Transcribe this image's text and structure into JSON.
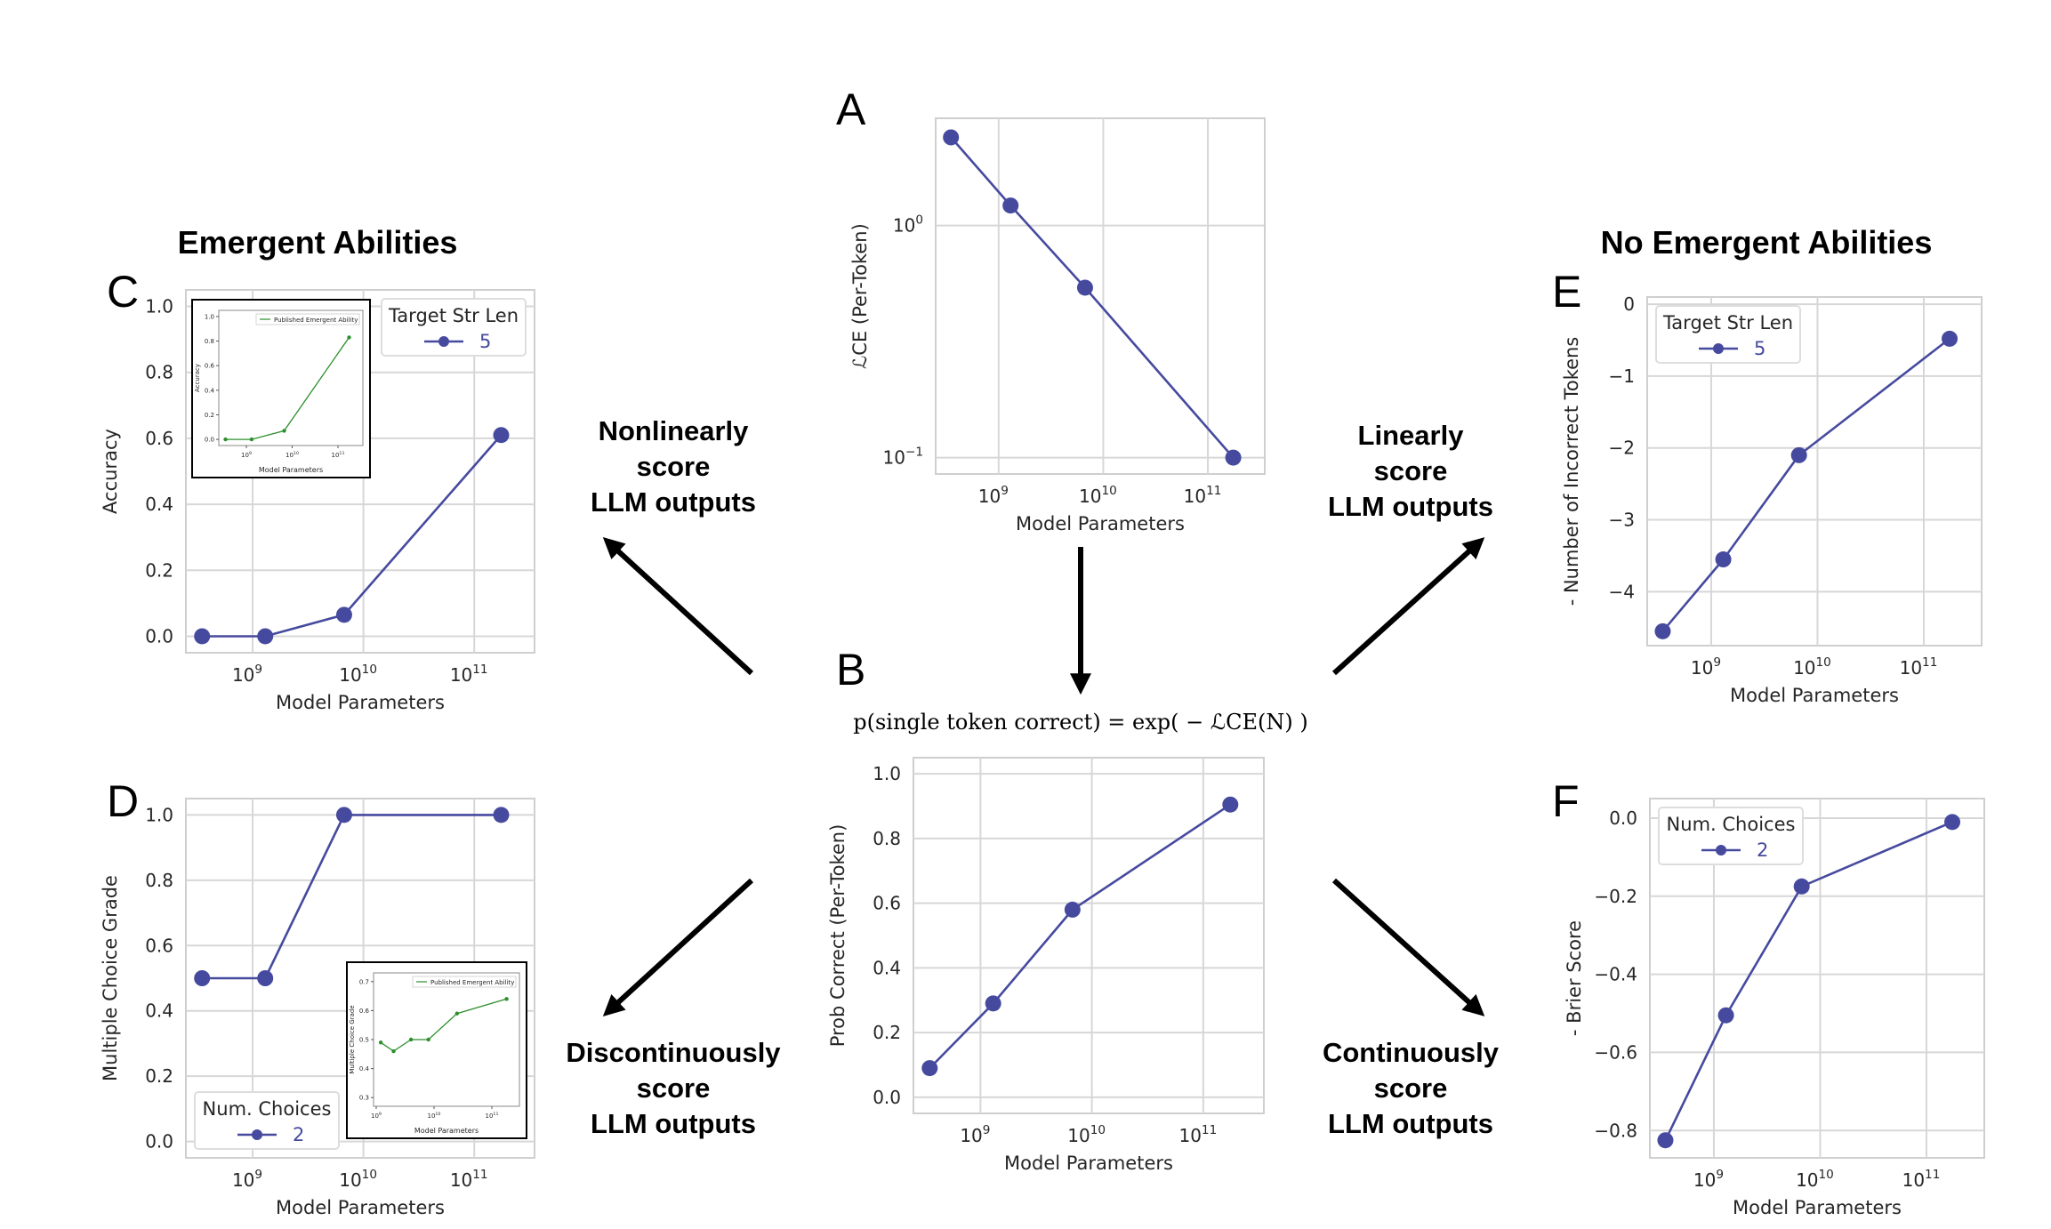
{
  "colors": {
    "series": "#464a9e",
    "inset": "#2c8f2c",
    "grid": "#d7d7d7",
    "frame": "#cfcfcf",
    "text": "#262626",
    "arrow": "#000000"
  },
  "headings": {
    "left": "Emergent Abilities",
    "right": "No Emergent Abilities"
  },
  "arrow_labels": {
    "upper_left": [
      "Nonlinearly",
      "score",
      "LLM outputs"
    ],
    "upper_right": [
      "Linearly",
      "score",
      "LLM outputs"
    ],
    "lower_left": [
      "Discontinuously",
      "score",
      "LLM outputs"
    ],
    "lower_right": [
      "Continuously",
      "score",
      "LLM outputs"
    ]
  },
  "formula": "p(single token correct) = exp( − ℒCE(N) )",
  "chart_data": [
    {
      "panel": "A",
      "type": "line",
      "xscale": "log",
      "yscale": "log",
      "x": [
        350000000.0,
        1300000000.0,
        6700000000.0,
        175000000000.0
      ],
      "y": [
        2.4,
        1.22,
        0.54,
        0.1
      ],
      "xlabel": "Model Parameters",
      "ylabel": "ℒCE (Per-Token)",
      "xlim": [
        250000000.0,
        350000000000.0
      ],
      "ylim": [
        0.085,
        2.9
      ],
      "xticks": [
        {
          "v": 1000000000.0,
          "b": "10",
          "e": "9"
        },
        {
          "v": 10000000000.0,
          "b": "10",
          "e": "10"
        },
        {
          "v": 100000000000.0,
          "b": "10",
          "e": "11"
        }
      ],
      "yticks": [
        {
          "v": 1,
          "b": "10",
          "e": "0"
        },
        {
          "v": 0.1,
          "b": "10",
          "e": "−1"
        }
      ],
      "grid": true,
      "legend": null
    },
    {
      "panel": "B",
      "type": "line",
      "xscale": "log",
      "x": [
        350000000.0,
        1300000000.0,
        6700000000.0,
        175000000000.0
      ],
      "y": [
        0.09,
        0.29,
        0.58,
        0.905
      ],
      "xlabel": "Model Parameters",
      "ylabel": "Prob Correct (Per-Token)",
      "xlim": [
        250000000.0,
        350000000000.0
      ],
      "ylim": [
        -0.05,
        1.05
      ],
      "xticks": [
        {
          "v": 1000000000.0,
          "b": "10",
          "e": "9"
        },
        {
          "v": 10000000000.0,
          "b": "10",
          "e": "10"
        },
        {
          "v": 100000000000.0,
          "b": "10",
          "e": "11"
        }
      ],
      "yticks": [
        {
          "v": 0,
          "t": "0.0"
        },
        {
          "v": 0.2,
          "t": "0.2"
        },
        {
          "v": 0.4,
          "t": "0.4"
        },
        {
          "v": 0.6,
          "t": "0.6"
        },
        {
          "v": 0.8,
          "t": "0.8"
        },
        {
          "v": 1,
          "t": "1.0"
        }
      ],
      "grid": true,
      "legend": null
    },
    {
      "panel": "C",
      "type": "line",
      "xscale": "log",
      "x": [
        350000000.0,
        1300000000.0,
        6700000000.0,
        175000000000.0
      ],
      "y": [
        0.0,
        0.0,
        0.065,
        0.61
      ],
      "xlabel": "Model Parameters",
      "ylabel": "Accuracy",
      "xlim": [
        250000000.0,
        350000000000.0
      ],
      "ylim": [
        -0.05,
        1.05
      ],
      "xticks": [
        {
          "v": 1000000000.0,
          "b": "10",
          "e": "9"
        },
        {
          "v": 10000000000.0,
          "b": "10",
          "e": "10"
        },
        {
          "v": 100000000000.0,
          "b": "10",
          "e": "11"
        }
      ],
      "yticks": [
        {
          "v": 0,
          "t": "0.0"
        },
        {
          "v": 0.2,
          "t": "0.2"
        },
        {
          "v": 0.4,
          "t": "0.4"
        },
        {
          "v": 0.6,
          "t": "0.6"
        },
        {
          "v": 0.8,
          "t": "0.8"
        },
        {
          "v": 1,
          "t": "1.0"
        }
      ],
      "grid": true,
      "legend": {
        "title": "Target Str Len",
        "entry": "5",
        "placement": "top-right"
      },
      "inset": {
        "placement": "top-left",
        "legend": "Published Emergent Ability",
        "xlabel": "Model Parameters",
        "ylabel": "Accuracy",
        "x": [
          350000000.0,
          1300000000.0,
          6700000000.0,
          175000000000.0
        ],
        "y": [
          0.0,
          0.0,
          0.07,
          0.83
        ],
        "xlim": [
          250000000.0,
          350000000000.0
        ],
        "ylim": [
          -0.05,
          1.05
        ],
        "xticks": [
          {
            "v": 1000000000.0,
            "b": "10",
            "e": "9"
          },
          {
            "v": 10000000000.0,
            "b": "10",
            "e": "10"
          },
          {
            "v": 100000000000.0,
            "b": "10",
            "e": "11"
          }
        ],
        "yticks": [
          {
            "v": 0,
            "t": "0.0"
          },
          {
            "v": 0.2,
            "t": "0.2"
          },
          {
            "v": 0.4,
            "t": "0.4"
          },
          {
            "v": 0.6,
            "t": "0.6"
          },
          {
            "v": 0.8,
            "t": "0.8"
          },
          {
            "v": 1,
            "t": "1.0"
          }
        ]
      }
    },
    {
      "panel": "D",
      "type": "line",
      "xscale": "log",
      "x": [
        350000000.0,
        1300000000.0,
        6700000000.0,
        175000000000.0
      ],
      "y": [
        0.5,
        0.5,
        1.0,
        1.0
      ],
      "xlabel": "Model Parameters",
      "ylabel": "Multiple Choice Grade",
      "xlim": [
        250000000.0,
        350000000000.0
      ],
      "ylim": [
        -0.05,
        1.05
      ],
      "xticks": [
        {
          "v": 1000000000.0,
          "b": "10",
          "e": "9"
        },
        {
          "v": 10000000000.0,
          "b": "10",
          "e": "10"
        },
        {
          "v": 100000000000.0,
          "b": "10",
          "e": "11"
        }
      ],
      "yticks": [
        {
          "v": 0,
          "t": "0.0"
        },
        {
          "v": 0.2,
          "t": "0.2"
        },
        {
          "v": 0.4,
          "t": "0.4"
        },
        {
          "v": 0.6,
          "t": "0.6"
        },
        {
          "v": 0.8,
          "t": "0.8"
        },
        {
          "v": 1,
          "t": "1.0"
        }
      ],
      "grid": true,
      "legend": {
        "title": "Num. Choices",
        "entry": "2",
        "placement": "bottom-left"
      },
      "inset": {
        "placement": "bottom-right",
        "legend": "Published Emergent Ability",
        "xlabel": "Model Parameters",
        "ylabel": "Multiple Choice Grade",
        "x": [
          1200000000.0,
          2000000000.0,
          4000000000.0,
          8000000000.0,
          25000000000.0,
          180000000000.0
        ],
        "y": [
          0.49,
          0.46,
          0.5,
          0.5,
          0.59,
          0.64
        ],
        "xlim": [
          900000000.0,
          300000000000.0
        ],
        "ylim": [
          0.27,
          0.73
        ],
        "xticks": [
          {
            "v": 1000000000.0,
            "b": "10",
            "e": "9"
          },
          {
            "v": 10000000000.0,
            "b": "10",
            "e": "10"
          },
          {
            "v": 100000000000.0,
            "b": "10",
            "e": "11"
          }
        ],
        "yticks": [
          {
            "v": 0.3,
            "t": "0.3"
          },
          {
            "v": 0.4,
            "t": "0.4"
          },
          {
            "v": 0.5,
            "t": "0.5"
          },
          {
            "v": 0.6,
            "t": "0.6"
          },
          {
            "v": 0.7,
            "t": "0.7"
          }
        ]
      }
    },
    {
      "panel": "E",
      "type": "line",
      "xscale": "log",
      "x": [
        350000000.0,
        1300000000.0,
        6700000000.0,
        175000000000.0
      ],
      "y": [
        -4.55,
        -3.55,
        -2.1,
        -0.48
      ],
      "xlabel": "Model Parameters",
      "ylabel": "- Number of Incorrect Tokens",
      "xlim": [
        250000000.0,
        350000000000.0
      ],
      "ylim": [
        -4.75,
        0.1
      ],
      "xticks": [
        {
          "v": 1000000000.0,
          "b": "10",
          "e": "9"
        },
        {
          "v": 10000000000.0,
          "b": "10",
          "e": "10"
        },
        {
          "v": 100000000000.0,
          "b": "10",
          "e": "11"
        }
      ],
      "yticks": [
        {
          "v": 0,
          "t": "0"
        },
        {
          "v": -1,
          "t": "−1"
        },
        {
          "v": -2,
          "t": "−2"
        },
        {
          "v": -3,
          "t": "−3"
        },
        {
          "v": -4,
          "t": "−4"
        }
      ],
      "grid": true,
      "legend": {
        "title": "Target Str Len",
        "entry": "5",
        "placement": "top-left"
      }
    },
    {
      "panel": "F",
      "type": "line",
      "xscale": "log",
      "x": [
        350000000.0,
        1300000000.0,
        6700000000.0,
        175000000000.0
      ],
      "y": [
        -0.825,
        -0.505,
        -0.175,
        -0.01
      ],
      "xlabel": "Model Parameters",
      "ylabel": "- Brier Score",
      "xlim": [
        250000000.0,
        350000000000.0
      ],
      "ylim": [
        -0.87,
        0.05
      ],
      "xticks": [
        {
          "v": 1000000000.0,
          "b": "10",
          "e": "9"
        },
        {
          "v": 10000000000.0,
          "b": "10",
          "e": "10"
        },
        {
          "v": 100000000000.0,
          "b": "10",
          "e": "11"
        }
      ],
      "yticks": [
        {
          "v": 0,
          "t": "0.0"
        },
        {
          "v": -0.2,
          "t": "−0.2"
        },
        {
          "v": -0.4,
          "t": "−0.4"
        },
        {
          "v": -0.6,
          "t": "−0.6"
        },
        {
          "v": -0.8,
          "t": "−0.8"
        }
      ],
      "grid": true,
      "legend": {
        "title": "Num. Choices",
        "entry": "2",
        "placement": "top-left"
      }
    }
  ]
}
